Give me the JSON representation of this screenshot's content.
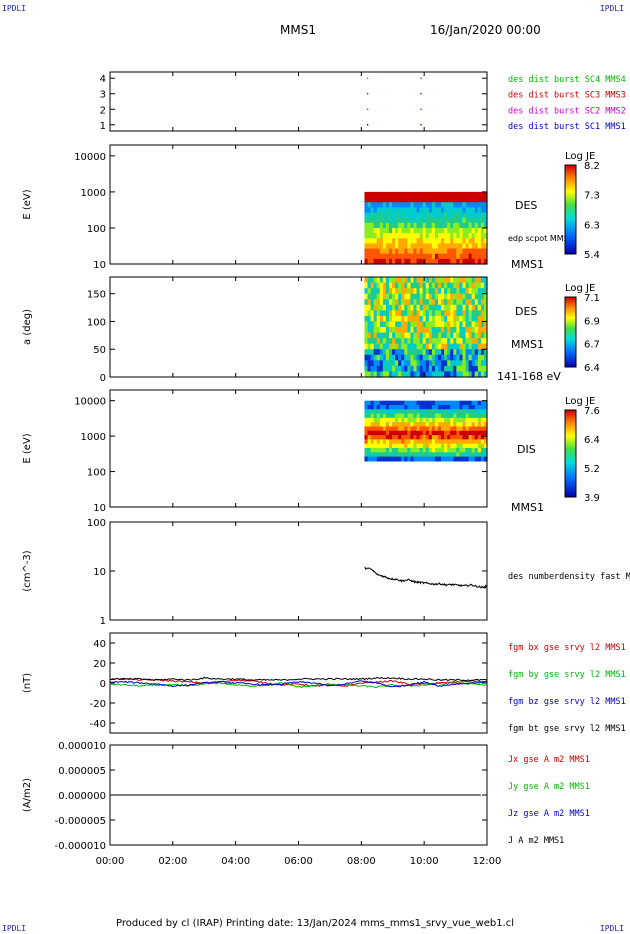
{
  "corner_label": "IPDLI",
  "header": {
    "title": "MMS1",
    "date": "16/Jan/2020 00:00"
  },
  "footer": "Produced by cl (IRAP)   Printing date: 13/Jan/2024   mms_mms1_srvy_vue_web1.cl",
  "colors": {
    "blue": "#0000cc",
    "magenta": "#cc00cc",
    "red": "#cc0000",
    "green": "#00bb00",
    "black": "#000000"
  },
  "chart_data": [
    {
      "id": "burst",
      "type": "scatter",
      "xlim": [
        0,
        12
      ],
      "ylim": [
        0.6,
        4.4
      ],
      "yticks": [
        "1",
        "2",
        "3",
        "4"
      ],
      "ytick_values": [
        1,
        2,
        3,
        4
      ],
      "ylabel": "",
      "series": [
        {
          "name": "des dist burst SC1 MMS1",
          "color": "#0000cc",
          "y": 1,
          "x": [
            8.2,
            9.9
          ]
        },
        {
          "name": "des dist burst SC2 MMS2",
          "color": "#cc00cc",
          "y": 2,
          "x": [
            8.2,
            9.9
          ]
        },
        {
          "name": "des dist burst SC3 MMS3",
          "color": "#cc0000",
          "y": 3,
          "x": [
            8.2,
            9.9
          ]
        },
        {
          "name": "des dist burst SC4 MMS4",
          "color": "#00bb00",
          "y": 4,
          "x": [
            8.2,
            9.9
          ]
        }
      ]
    },
    {
      "id": "des_energy",
      "type": "heatmap",
      "ylabel": "E (eV)",
      "yscale": "log",
      "ylim": [
        10,
        20000
      ],
      "yticks": [
        "10",
        "100",
        "1000",
        "10000"
      ],
      "ytick_values": [
        10,
        100,
        1000,
        10000
      ],
      "data_x_range": [
        8.1,
        12
      ],
      "data_y_range": [
        10,
        1000
      ],
      "right_labels": [
        "DES",
        "edp scpot MMS1",
        "MMS1"
      ],
      "colorbar": {
        "title": "Log JE",
        "ticks": [
          "8.2",
          "7.3",
          "6.3",
          "5.4"
        ]
      }
    },
    {
      "id": "des_pitch",
      "type": "heatmap",
      "ylabel": "a (deg)",
      "ylim": [
        0,
        180
      ],
      "yticks": [
        "0",
        "50",
        "100",
        "150"
      ],
      "ytick_values": [
        0,
        50,
        100,
        150
      ],
      "data_x_range": [
        8.1,
        12
      ],
      "right_labels": [
        "DES",
        "MMS1",
        "141-168 eV"
      ],
      "colorbar": {
        "title": "Log JE",
        "ticks": [
          "7.1",
          "6.9",
          "6.7",
          "6.4"
        ]
      }
    },
    {
      "id": "dis_energy",
      "type": "heatmap",
      "ylabel": "E (eV)",
      "yscale": "log",
      "ylim": [
        10,
        20000
      ],
      "yticks": [
        "10",
        "100",
        "1000",
        "10000"
      ],
      "ytick_values": [
        10,
        100,
        1000,
        10000
      ],
      "data_x_range": [
        8.1,
        12
      ],
      "data_y_range": [
        200,
        10000
      ],
      "right_labels": [
        "DIS",
        "MMS1"
      ],
      "colorbar": {
        "title": "Log JE",
        "ticks": [
          "7.6",
          "6.4",
          "5.2",
          "3.9"
        ]
      }
    },
    {
      "id": "density",
      "type": "line",
      "ylabel": "(cm^-3)",
      "yscale": "log",
      "ylim": [
        1,
        100
      ],
      "yticks": [
        "1",
        "10",
        "100"
      ],
      "ytick_values": [
        1,
        10,
        100
      ],
      "series": [
        {
          "name": "des numberdensity fast M",
          "color": "#000000",
          "x": [
            8.1,
            8.3,
            8.5,
            8.7,
            8.9,
            9.1,
            9.3,
            9.5,
            9.7,
            9.9,
            10.1,
            10.3,
            10.5,
            10.7,
            10.9,
            11.1,
            11.3,
            11.5,
            11.7,
            11.9,
            12.0
          ],
          "y": [
            11.5,
            11.0,
            8.5,
            7.8,
            7.0,
            6.8,
            6.3,
            6.6,
            6.0,
            5.8,
            5.6,
            5.4,
            5.5,
            5.2,
            5.3,
            5.1,
            5.0,
            5.2,
            4.8,
            4.6,
            5.0
          ]
        }
      ]
    },
    {
      "id": "fgm",
      "type": "line",
      "ylabel": "(nT)",
      "ylim": [
        -50,
        50
      ],
      "yticks": [
        "-40",
        "-20",
        "0",
        "20",
        "40"
      ],
      "ytick_values": [
        -40,
        -20,
        0,
        20,
        40
      ],
      "series": [
        {
          "name": "fgm bx gse srvy l2 MMS1",
          "color": "#cc0000",
          "x": [
            0,
            0.5,
            1,
            1.5,
            2,
            2.5,
            3,
            3.5,
            4,
            4.5,
            5,
            5.5,
            6,
            6.5,
            7,
            7.5,
            8,
            8.5,
            9,
            9.5,
            10,
            10.5,
            11,
            11.5,
            12
          ],
          "y": [
            4,
            4,
            3,
            3,
            2,
            1,
            0,
            1,
            3,
            2,
            0,
            -2,
            -1,
            -3,
            -2,
            -3,
            0,
            1,
            2,
            -1,
            -1,
            0,
            1,
            2,
            1
          ]
        },
        {
          "name": "fgm by gse srvy l2 MMS1",
          "color": "#00bb00",
          "x": [
            0,
            0.5,
            1,
            1.5,
            2,
            2.5,
            3,
            3.5,
            4,
            4.5,
            5,
            5.5,
            6,
            6.5,
            7,
            7.5,
            8,
            8.5,
            9,
            9.5,
            10,
            10.5,
            11,
            11.5,
            12
          ],
          "y": [
            -1,
            -2,
            -3,
            -2,
            -2,
            -3,
            -1,
            0,
            -2,
            -3,
            -2,
            0,
            -4,
            -3,
            -1,
            -2,
            -3,
            -4,
            -2,
            -3,
            -2,
            -1,
            0,
            -1,
            -2
          ]
        },
        {
          "name": "fgm bz gse srvy l2 MMS1",
          "color": "#0000cc",
          "x": [
            0,
            0.5,
            1,
            1.5,
            2,
            2.5,
            3,
            3.5,
            4,
            4.5,
            5,
            5.5,
            6,
            6.5,
            7,
            7.5,
            8,
            8.5,
            9,
            9.5,
            10,
            10.5,
            11,
            11.5,
            12
          ],
          "y": [
            1,
            1,
            0,
            -1,
            -3,
            -2,
            0,
            1,
            0,
            -1,
            -2,
            -1,
            1,
            0,
            -3,
            -1,
            2,
            0,
            -4,
            -2,
            1,
            -3,
            -1,
            0,
            1
          ]
        },
        {
          "name": "fgm bt gse srvy l2 MMS1",
          "color": "#000000",
          "x": [
            0,
            0.5,
            1,
            1.5,
            2,
            2.5,
            3,
            3.5,
            4,
            4.5,
            5,
            5.5,
            6,
            6.5,
            7,
            7.5,
            8,
            8.5,
            9,
            9.5,
            10,
            10.5,
            11,
            11.5,
            12
          ],
          "y": [
            4,
            4,
            4,
            3,
            4,
            3,
            5,
            4,
            4,
            3,
            3,
            3,
            4,
            4,
            4,
            4,
            4,
            5,
            5,
            4,
            4,
            3,
            3,
            3,
            3
          ]
        }
      ]
    },
    {
      "id": "current",
      "type": "line",
      "ylabel": "(A/m2)",
      "ylim": [
        -1e-05,
        1e-05
      ],
      "yticks": [
        "-0.000010",
        "-0.000005",
        "0.000000",
        "0.000005",
        "0.000010"
      ],
      "ytick_values": [
        -1e-05,
        -5e-06,
        0,
        5e-06,
        1e-05
      ],
      "xticks": [
        "00:00",
        "02:00",
        "04:00",
        "06:00",
        "08:00",
        "10:00",
        "12:00"
      ],
      "xtick_values": [
        0,
        2,
        4,
        6,
        8,
        10,
        12
      ],
      "series": [
        {
          "name": "Jx gse A m2 MMS1",
          "color": "#cc0000",
          "x": [
            0,
            11.8
          ],
          "y": [
            0,
            0
          ]
        },
        {
          "name": "Jy gse A m2 MMS1",
          "color": "#00bb00",
          "x": [
            0,
            11.8
          ],
          "y": [
            0,
            0
          ]
        },
        {
          "name": "Jz gse A m2 MMS1",
          "color": "#0000cc",
          "x": [
            0,
            11.8
          ],
          "y": [
            0,
            0
          ]
        },
        {
          "name": "J A m2 MMS1",
          "color": "#000000",
          "x": [
            0,
            11.8
          ],
          "y": [
            0,
            0
          ]
        }
      ]
    }
  ]
}
